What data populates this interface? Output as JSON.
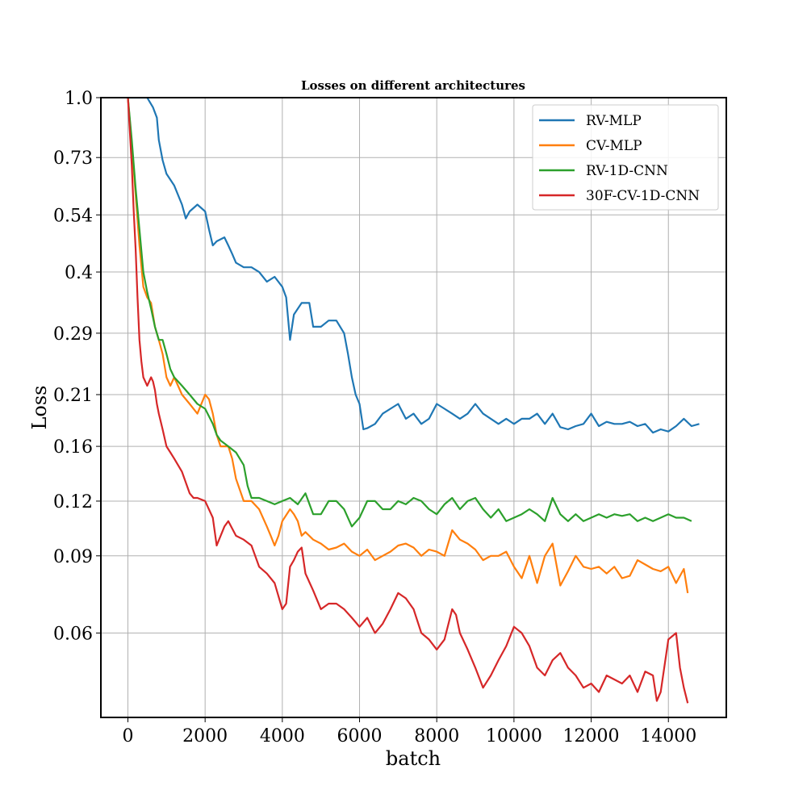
{
  "chart_data": {
    "type": "line",
    "title": "Losses on different architectures",
    "xlabel": "batch",
    "ylabel": "Loss",
    "y_scale": "log",
    "xlim": [
      -700,
      15500
    ],
    "ylim": [
      0.0385,
      1.0
    ],
    "x_ticks": [
      0,
      2000,
      4000,
      6000,
      8000,
      10000,
      12000,
      14000
    ],
    "x_tick_labels": [
      "0",
      "2000",
      "4000",
      "6000",
      "8000",
      "10000",
      "12000",
      "14000"
    ],
    "y_ticks": [
      1.0,
      0.73,
      0.54,
      0.4,
      0.29,
      0.21,
      0.16,
      0.12,
      0.09,
      0.06
    ],
    "y_tick_labels": [
      "1.0",
      "0.73",
      "0.54",
      "0.4",
      "0.29",
      "0.21",
      "0.16",
      "0.12",
      "0.09",
      "0.06"
    ],
    "grid": true,
    "legend_position": "top-right",
    "series": [
      {
        "name": "RV-MLP",
        "color": "#1f77b4",
        "x": [
          0,
          300,
          500,
          650,
          750,
          800,
          900,
          1000,
          1200,
          1400,
          1500,
          1600,
          1800,
          2000,
          2100,
          2200,
          2300,
          2500,
          2600,
          2700,
          2800,
          3000,
          3200,
          3400,
          3600,
          3800,
          4000,
          4100,
          4200,
          4300,
          4500,
          4700,
          4800,
          5000,
          5200,
          5400,
          5600,
          5700,
          5800,
          5900,
          6000,
          6100,
          6200,
          6400,
          6600,
          6800,
          7000,
          7200,
          7400,
          7600,
          7800,
          8000,
          8200,
          8400,
          8600,
          8800,
          9000,
          9200,
          9400,
          9600,
          9800,
          10000,
          10200,
          10400,
          10600,
          10800,
          11000,
          11200,
          11400,
          11600,
          11800,
          12000,
          12200,
          12400,
          12600,
          12800,
          13000,
          13200,
          13400,
          13600,
          13800,
          14000,
          14200,
          14400,
          14600,
          14800
        ],
        "values": [
          1.05,
          1.04,
          1.0,
          0.95,
          0.9,
          0.8,
          0.72,
          0.67,
          0.63,
          0.57,
          0.53,
          0.55,
          0.57,
          0.55,
          0.5,
          0.46,
          0.47,
          0.48,
          0.46,
          0.44,
          0.42,
          0.41,
          0.41,
          0.4,
          0.38,
          0.39,
          0.37,
          0.35,
          0.28,
          0.32,
          0.34,
          0.34,
          0.3,
          0.3,
          0.31,
          0.31,
          0.29,
          0.26,
          0.23,
          0.21,
          0.2,
          0.175,
          0.176,
          0.18,
          0.19,
          0.195,
          0.2,
          0.185,
          0.19,
          0.18,
          0.185,
          0.2,
          0.195,
          0.19,
          0.185,
          0.19,
          0.2,
          0.19,
          0.185,
          0.18,
          0.185,
          0.18,
          0.185,
          0.185,
          0.19,
          0.18,
          0.19,
          0.177,
          0.175,
          0.178,
          0.18,
          0.19,
          0.178,
          0.182,
          0.18,
          0.18,
          0.182,
          0.178,
          0.18,
          0.172,
          0.175,
          0.173,
          0.178,
          0.185,
          0.178,
          0.18
        ]
      },
      {
        "name": "CV-MLP",
        "color": "#ff7f0e",
        "x": [
          0,
          100,
          200,
          300,
          400,
          500,
          600,
          700,
          800,
          900,
          1000,
          1100,
          1200,
          1400,
          1600,
          1800,
          2000,
          2100,
          2200,
          2300,
          2400,
          2600,
          2700,
          2800,
          3000,
          3200,
          3400,
          3600,
          3700,
          3800,
          3900,
          4000,
          4200,
          4300,
          4400,
          4500,
          4600,
          4800,
          5000,
          5200,
          5400,
          5600,
          5800,
          6000,
          6200,
          6400,
          6600,
          6800,
          7000,
          7200,
          7400,
          7600,
          7800,
          8000,
          8200,
          8400,
          8600,
          8800,
          9000,
          9200,
          9400,
          9600,
          9800,
          10000,
          10200,
          10400,
          10600,
          10800,
          11000,
          11200,
          11400,
          11600,
          11800,
          12000,
          12200,
          12400,
          12600,
          12800,
          13000,
          13200,
          13400,
          13600,
          13800,
          14000,
          14200,
          14400,
          14500
        ],
        "values": [
          1.0,
          0.78,
          0.6,
          0.46,
          0.37,
          0.35,
          0.34,
          0.3,
          0.28,
          0.26,
          0.23,
          0.22,
          0.23,
          0.21,
          0.2,
          0.19,
          0.21,
          0.205,
          0.19,
          0.17,
          0.16,
          0.16,
          0.15,
          0.135,
          0.12,
          0.12,
          0.115,
          0.105,
          0.1,
          0.095,
          0.1,
          0.108,
          0.115,
          0.112,
          0.108,
          0.1,
          0.102,
          0.098,
          0.096,
          0.093,
          0.094,
          0.096,
          0.092,
          0.09,
          0.093,
          0.088,
          0.09,
          0.092,
          0.095,
          0.096,
          0.094,
          0.09,
          0.093,
          0.092,
          0.09,
          0.103,
          0.098,
          0.096,
          0.093,
          0.088,
          0.09,
          0.09,
          0.092,
          0.085,
          0.08,
          0.09,
          0.078,
          0.09,
          0.096,
          0.077,
          0.083,
          0.09,
          0.085,
          0.084,
          0.085,
          0.082,
          0.085,
          0.08,
          0.081,
          0.088,
          0.086,
          0.084,
          0.083,
          0.085,
          0.078,
          0.084,
          0.074
        ]
      },
      {
        "name": "RV-1D-CNN",
        "color": "#2ca02c",
        "x": [
          0,
          100,
          200,
          300,
          400,
          500,
          600,
          700,
          800,
          900,
          1000,
          1100,
          1200,
          1400,
          1600,
          1800,
          2000,
          2200,
          2300,
          2400,
          2600,
          2800,
          3000,
          3100,
          3200,
          3400,
          3600,
          3800,
          4000,
          4200,
          4400,
          4600,
          4800,
          5000,
          5200,
          5400,
          5600,
          5800,
          6000,
          6200,
          6400,
          6600,
          6800,
          7000,
          7200,
          7400,
          7600,
          7800,
          8000,
          8200,
          8400,
          8600,
          8800,
          9000,
          9200,
          9400,
          9600,
          9800,
          10000,
          10200,
          10400,
          10600,
          10800,
          11000,
          11200,
          11400,
          11600,
          11800,
          12000,
          12200,
          12400,
          12600,
          12800,
          13000,
          13200,
          13400,
          13600,
          13800,
          14000,
          14200,
          14400,
          14600
        ],
        "values": [
          1.0,
          0.8,
          0.62,
          0.5,
          0.4,
          0.36,
          0.33,
          0.3,
          0.28,
          0.28,
          0.26,
          0.24,
          0.23,
          0.22,
          0.21,
          0.2,
          0.195,
          0.18,
          0.17,
          0.165,
          0.16,
          0.155,
          0.145,
          0.13,
          0.122,
          0.122,
          0.12,
          0.118,
          0.12,
          0.122,
          0.118,
          0.125,
          0.112,
          0.112,
          0.12,
          0.12,
          0.115,
          0.105,
          0.11,
          0.12,
          0.12,
          0.115,
          0.115,
          0.12,
          0.118,
          0.122,
          0.12,
          0.115,
          0.112,
          0.118,
          0.122,
          0.115,
          0.12,
          0.122,
          0.115,
          0.11,
          0.115,
          0.108,
          0.11,
          0.112,
          0.115,
          0.112,
          0.108,
          0.122,
          0.112,
          0.108,
          0.112,
          0.108,
          0.11,
          0.112,
          0.11,
          0.112,
          0.111,
          0.112,
          0.108,
          0.11,
          0.108,
          0.11,
          0.112,
          0.11,
          0.11,
          0.108
        ]
      },
      {
        "name": "30F-CV-1D-CNN",
        "color": "#d62728",
        "x": [
          0,
          100,
          150,
          200,
          250,
          300,
          350,
          400,
          500,
          600,
          650,
          700,
          750,
          800,
          900,
          1000,
          1100,
          1200,
          1400,
          1600,
          1700,
          1800,
          2000,
          2200,
          2300,
          2500,
          2600,
          2800,
          3000,
          3200,
          3400,
          3600,
          3800,
          4000,
          4100,
          4200,
          4300,
          4400,
          4500,
          4600,
          4800,
          5000,
          5200,
          5400,
          5600,
          5800,
          6000,
          6200,
          6400,
          6600,
          6800,
          7000,
          7200,
          7400,
          7600,
          7800,
          8000,
          8200,
          8400,
          8500,
          8600,
          8800,
          9000,
          9200,
          9400,
          9600,
          9800,
          10000,
          10200,
          10400,
          10600,
          10800,
          11000,
          11200,
          11400,
          11600,
          11800,
          12000,
          12200,
          12400,
          12600,
          12800,
          13000,
          13200,
          13400,
          13600,
          13700,
          13800,
          14000,
          14200,
          14300,
          14400,
          14500
        ],
        "values": [
          1.0,
          0.7,
          0.55,
          0.45,
          0.35,
          0.28,
          0.25,
          0.23,
          0.22,
          0.23,
          0.225,
          0.215,
          0.2,
          0.19,
          0.175,
          0.16,
          0.155,
          0.15,
          0.14,
          0.125,
          0.122,
          0.122,
          0.12,
          0.11,
          0.095,
          0.105,
          0.108,
          0.1,
          0.098,
          0.095,
          0.085,
          0.082,
          0.078,
          0.068,
          0.07,
          0.085,
          0.088,
          0.092,
          0.094,
          0.082,
          0.075,
          0.068,
          0.07,
          0.07,
          0.068,
          0.065,
          0.062,
          0.065,
          0.06,
          0.063,
          0.068,
          0.074,
          0.072,
          0.068,
          0.06,
          0.058,
          0.055,
          0.058,
          0.068,
          0.066,
          0.06,
          0.055,
          0.05,
          0.045,
          0.048,
          0.052,
          0.056,
          0.062,
          0.06,
          0.056,
          0.05,
          0.048,
          0.052,
          0.054,
          0.05,
          0.048,
          0.045,
          0.046,
          0.044,
          0.048,
          0.047,
          0.046,
          0.048,
          0.044,
          0.049,
          0.048,
          0.042,
          0.044,
          0.058,
          0.06,
          0.05,
          0.045,
          0.0415
        ]
      }
    ]
  }
}
